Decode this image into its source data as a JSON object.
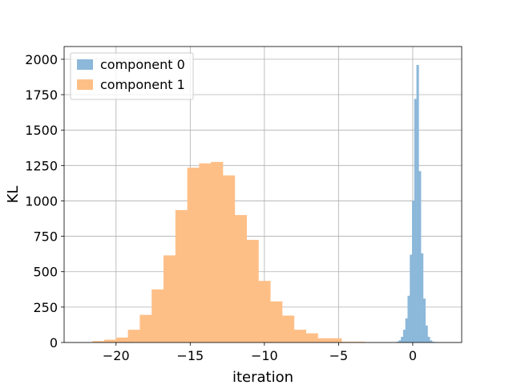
{
  "chart_data": {
    "type": "histogram",
    "xlabel": "iteration",
    "ylabel": "KL",
    "xlim": [
      -23.5,
      3.3
    ],
    "ylim": [
      0,
      2090
    ],
    "xticks": [
      -20,
      -15,
      -10,
      -5,
      0
    ],
    "xtick_labels": [
      "−20",
      "−15",
      "−10",
      "−5",
      "0"
    ],
    "yticks": [
      0,
      250,
      500,
      750,
      1000,
      1250,
      1500,
      1750,
      2000
    ],
    "yticks_labels": [
      "0",
      "250",
      "500",
      "750",
      "1000",
      "1250",
      "1500",
      "1750",
      "2000"
    ],
    "grid": true,
    "legend_position": "upper-left",
    "series": [
      {
        "name": "component 0",
        "color": "#8cb8da",
        "bin_edges": [
          -1.1,
          -0.95,
          -0.8,
          -0.65,
          -0.5,
          -0.35,
          -0.2,
          -0.05,
          0.1,
          0.25,
          0.4,
          0.55,
          0.7,
          0.85,
          1.0,
          1.15,
          1.3,
          1.45,
          1.6,
          1.75,
          1.9
        ],
        "counts": [
          5,
          15,
          40,
          90,
          170,
          330,
          620,
          1000,
          1720,
          1960,
          1210,
          630,
          310,
          120,
          40,
          15,
          5,
          3,
          2,
          1
        ]
      },
      {
        "name": "component 1",
        "color": "#febf87",
        "bin_edges": [
          -21.6,
          -20.8,
          -20.0,
          -19.2,
          -18.4,
          -17.6,
          -16.8,
          -16.0,
          -15.2,
          -14.4,
          -13.6,
          -12.8,
          -12.0,
          -11.2,
          -10.4,
          -9.6,
          -8.8,
          -8.0,
          -7.2,
          -6.4,
          -5.6,
          -4.8,
          -4.0,
          -3.2
        ],
        "counts": [
          10,
          20,
          35,
          90,
          195,
          375,
          615,
          935,
          1235,
          1265,
          1275,
          1180,
          900,
          725,
          435,
          290,
          190,
          90,
          65,
          30,
          30,
          5,
          5
        ]
      }
    ]
  }
}
